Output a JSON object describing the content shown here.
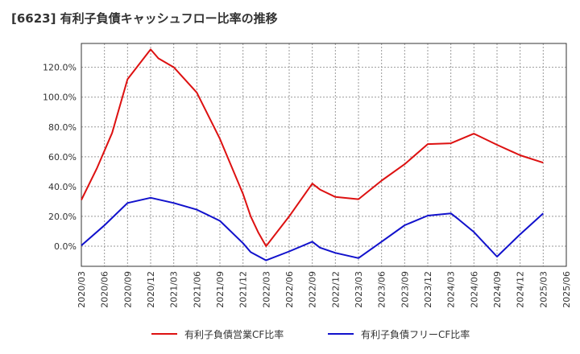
{
  "title": "[6623]  有利子負債キャッシュフロー比率の推移",
  "chart_data": {
    "type": "line",
    "title": "[6623]  有利子負債キャッシュフロー比率の推移",
    "xlabel": "",
    "ylabel": "",
    "x": [
      "2020/03",
      "2020/06",
      "2020/09",
      "2020/12",
      "2021/03",
      "2021/06",
      "2021/09",
      "2021/12",
      "2022/03",
      "2022/06",
      "2022/09",
      "2022/12",
      "2023/03",
      "2023/06",
      "2023/09",
      "2023/12",
      "2024/03",
      "2024/06",
      "2024/09",
      "2024/12",
      "2025/03",
      "2025/06"
    ],
    "ylim": [
      -13.5,
      136
    ],
    "yticks": [
      0,
      20,
      40,
      60,
      80,
      100,
      120
    ],
    "ytick_labels": [
      "0.0%",
      "20.0%",
      "40.0%",
      "60.0%",
      "80.0%",
      "100.0%",
      "120.0%"
    ],
    "grid": true,
    "legend_position": "bottom",
    "series": [
      {
        "name": "有利子負債営業CF比率",
        "color": "#dd1111",
        "points": [
          [
            "2020/03",
            31
          ],
          [
            "2020/05",
            52
          ],
          [
            "2020/07",
            76
          ],
          [
            "2020/09",
            112
          ],
          [
            "2020/12",
            132
          ],
          [
            "2021/01",
            126
          ],
          [
            "2021/03",
            120
          ],
          [
            "2021/06",
            103
          ],
          [
            "2021/09",
            72
          ],
          [
            "2021/12",
            35
          ],
          [
            "2022/01",
            20
          ],
          [
            "2022/02",
            9
          ],
          [
            "2022/03",
            0
          ],
          [
            "2022/06",
            20
          ],
          [
            "2022/09",
            42
          ],
          [
            "2022/10",
            38
          ],
          [
            "2022/12",
            33
          ],
          [
            "2023/03",
            31.5
          ],
          [
            "2023/06",
            44
          ],
          [
            "2023/09",
            55
          ],
          [
            "2023/12",
            68.5
          ],
          [
            "2024/03",
            69
          ],
          [
            "2024/06",
            75.5
          ],
          [
            "2024/09",
            68
          ],
          [
            "2024/12",
            61
          ],
          [
            "2025/03",
            56
          ]
        ]
      },
      {
        "name": "有利子負債フリーCF比率",
        "color": "#1111cc",
        "points": [
          [
            "2020/03",
            0.5
          ],
          [
            "2020/06",
            14
          ],
          [
            "2020/09",
            29
          ],
          [
            "2020/12",
            32.5
          ],
          [
            "2021/03",
            29
          ],
          [
            "2021/06",
            24.5
          ],
          [
            "2021/09",
            17
          ],
          [
            "2021/12",
            2
          ],
          [
            "2022/01",
            -4
          ],
          [
            "2022/03",
            -9.5
          ],
          [
            "2022/06",
            -3.5
          ],
          [
            "2022/09",
            3
          ],
          [
            "2022/10",
            -1
          ],
          [
            "2022/12",
            -4.5
          ],
          [
            "2023/03",
            -8
          ],
          [
            "2023/06",
            3
          ],
          [
            "2023/09",
            14
          ],
          [
            "2023/12",
            20.5
          ],
          [
            "2024/03",
            22
          ],
          [
            "2024/04",
            18
          ],
          [
            "2024/06",
            9.5
          ],
          [
            "2024/09",
            -7
          ],
          [
            "2024/12",
            8
          ],
          [
            "2025/03",
            22
          ]
        ]
      }
    ]
  }
}
